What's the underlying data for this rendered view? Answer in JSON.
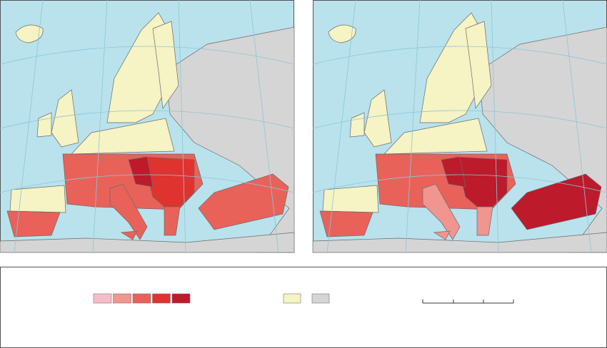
{
  "legend": {
    "classes": [
      "#f6bcc8",
      "#f0958f",
      "#e8625a",
      "#df3330",
      "#bd1a2b"
    ],
    "no_data": "#f6f3c4",
    "outside": "#d5d5d5"
  }
}
